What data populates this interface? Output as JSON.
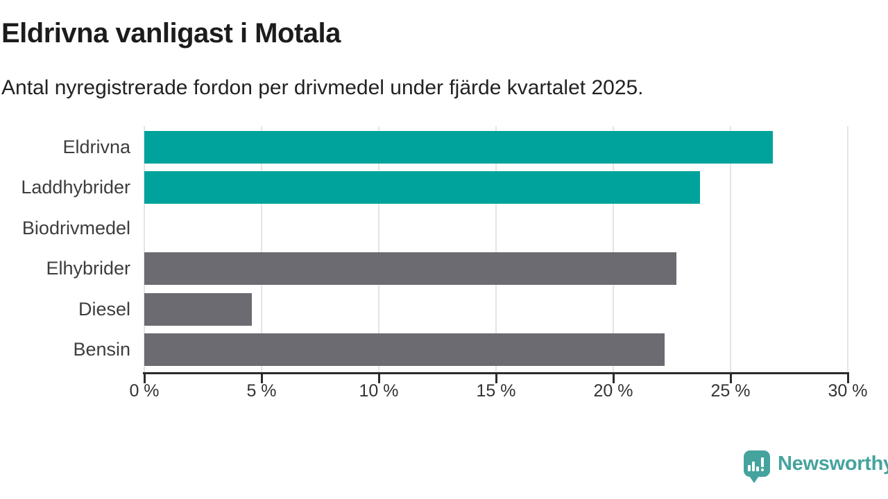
{
  "chart_data": {
    "type": "bar",
    "orientation": "horizontal",
    "title": "Eldrivna vanligast i Motala",
    "subtitle": "Antal nyregistrerade fordon per drivmedel under fjärde kvartalet 2025.",
    "categories": [
      "Eldrivna",
      "Laddhybrider",
      "Biodrivmedel",
      "Elhybrider",
      "Diesel",
      "Bensin"
    ],
    "values": [
      26.8,
      23.7,
      0,
      22.7,
      4.6,
      22.2
    ],
    "bar_colors": [
      "#00A39B",
      "#00A39B",
      "#00A39B",
      "#6B6B71",
      "#6B6B71",
      "#6B6B71"
    ],
    "unit": "%",
    "xlim": [
      0,
      30
    ],
    "x_ticks": [
      0,
      5,
      10,
      15,
      20,
      25,
      30
    ],
    "x_tick_labels": [
      "0 %",
      "5 %",
      "10 %",
      "15 %",
      "20 %",
      "25 %",
      "30 %"
    ],
    "grid": "vertical",
    "legend": "none"
  },
  "brand": {
    "name": "Newsworthy"
  },
  "colors": {
    "accent_teal": "#00A39B",
    "neutral_gray": "#6B6B71",
    "gridline": "#E5E5E5",
    "axis": "#2B2B2B",
    "title_text": "#1C1C1C",
    "label_text": "#3D3D3D",
    "logo_teal": "#45A39E"
  }
}
